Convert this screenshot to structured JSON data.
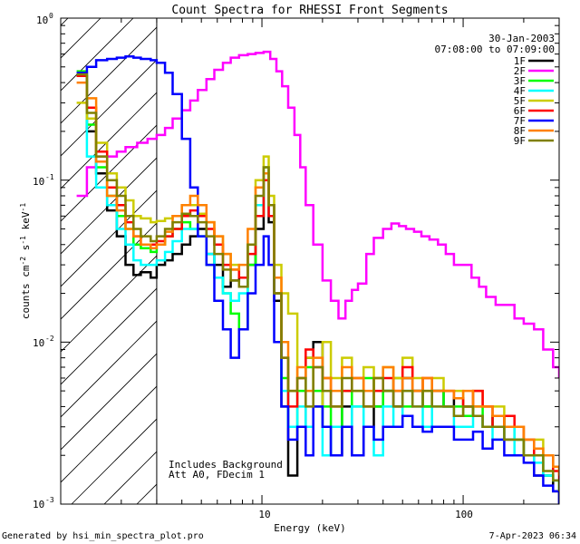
{
  "chart_data": {
    "type": "line",
    "title": "Count Spectra for RHESSI Front Segments",
    "date": "30-Jan-2003",
    "time_range": "07:08:00 to 07:09:00",
    "xlabel": "Energy (keV)",
    "ylabel": "counts cm",
    "ylabel_exp1": "-2",
    "ylabel_mid": " s",
    "ylabel_exp2": "-1",
    "ylabel_tail": " keV",
    "ylabel_exp3": "-1",
    "xscale": "log",
    "yscale": "log",
    "xlim": [
      1,
      300
    ],
    "ylim": [
      0.001,
      1
    ],
    "x_ticks": [
      {
        "value": 10,
        "label": "10"
      },
      {
        "value": 100,
        "label": "100"
      }
    ],
    "y_ticks": [
      {
        "value": 1,
        "base": "10",
        "exp": "0"
      },
      {
        "value": 0.1,
        "base": "10",
        "exp": "-1"
      },
      {
        "value": 0.01,
        "base": "10",
        "exp": "-2"
      },
      {
        "value": 0.001,
        "base": "10",
        "exp": "-3"
      }
    ],
    "hatched_region_xmax": 3,
    "annotations": [
      "Includes Background",
      "Att A0, FDecim 1"
    ],
    "legend_position": "top-right",
    "series": [
      {
        "name": "1F",
        "color": "#000000",
        "x": [
          1.2,
          1.35,
          1.5,
          1.7,
          1.9,
          2.1,
          2.3,
          2.5,
          2.8,
          3.0,
          3.3,
          3.6,
          4.0,
          4.4,
          4.8,
          5.3,
          5.8,
          6.4,
          7.0,
          7.7,
          8.5,
          9.3,
          10.2,
          10.8,
          11.5,
          12.5,
          13.5,
          15,
          16.5,
          18,
          20,
          22,
          25,
          28,
          32,
          36,
          40,
          45,
          50,
          56,
          63,
          70,
          80,
          90,
          100,
          112,
          125,
          140,
          160,
          180,
          200,
          225,
          250,
          280,
          300
        ],
        "y": [
          0.44,
          0.2,
          0.11,
          0.065,
          0.045,
          0.03,
          0.026,
          0.027,
          0.025,
          0.03,
          0.032,
          0.035,
          0.04,
          0.045,
          0.05,
          0.035,
          0.03,
          0.022,
          0.024,
          0.025,
          0.03,
          0.05,
          0.1,
          0.055,
          0.018,
          0.004,
          0.0015,
          0.003,
          0.008,
          0.01,
          0.003,
          0.002,
          0.004,
          0.002,
          0.003,
          0.004,
          0.005,
          0.004,
          0.006,
          0.005,
          0.004,
          0.005,
          0.004,
          0.0045,
          0.004,
          0.0035,
          0.003,
          0.0035,
          0.0025,
          0.0025,
          0.002,
          0.0015,
          0.0015,
          0.0012,
          0.001
        ]
      },
      {
        "name": "2F",
        "color": "#ff00ff",
        "x": [
          1.2,
          1.35,
          1.5,
          1.7,
          1.9,
          2.1,
          2.4,
          2.7,
          3.0,
          3.3,
          3.6,
          4.0,
          4.4,
          4.8,
          5.3,
          5.8,
          6.4,
          7.0,
          7.7,
          8.5,
          9.3,
          10.2,
          11.0,
          11.8,
          12.6,
          13.5,
          14.5,
          15.5,
          16.5,
          18,
          20,
          22,
          24,
          26,
          28,
          30,
          33,
          36,
          40,
          44,
          48,
          52,
          57,
          62,
          68,
          75,
          82,
          90,
          100,
          110,
          120,
          130,
          145,
          160,
          180,
          200,
          225,
          250,
          280,
          300
        ],
        "y": [
          0.08,
          0.12,
          0.14,
          0.14,
          0.15,
          0.16,
          0.17,
          0.18,
          0.19,
          0.21,
          0.24,
          0.27,
          0.31,
          0.36,
          0.42,
          0.48,
          0.53,
          0.57,
          0.59,
          0.6,
          0.61,
          0.62,
          0.56,
          0.47,
          0.38,
          0.28,
          0.19,
          0.12,
          0.07,
          0.04,
          0.024,
          0.018,
          0.014,
          0.018,
          0.021,
          0.023,
          0.035,
          0.044,
          0.05,
          0.054,
          0.052,
          0.05,
          0.048,
          0.045,
          0.043,
          0.04,
          0.035,
          0.03,
          0.03,
          0.025,
          0.022,
          0.019,
          0.017,
          0.017,
          0.014,
          0.013,
          0.012,
          0.009,
          0.007,
          0.006
        ]
      },
      {
        "name": "3F",
        "color": "#00ff00",
        "x": [
          1.2,
          1.35,
          1.5,
          1.7,
          1.9,
          2.1,
          2.3,
          2.5,
          2.8,
          3.0,
          3.3,
          3.6,
          4.0,
          4.4,
          4.8,
          5.3,
          5.8,
          6.4,
          7.0,
          7.7,
          8.5,
          9.3,
          10.2,
          10.8,
          11.5,
          12.5,
          13.5,
          15,
          16.5,
          18,
          20,
          22,
          25,
          28,
          32,
          36,
          40,
          45,
          50,
          56,
          63,
          70,
          80,
          90,
          100,
          112,
          125,
          140,
          160,
          180,
          200,
          225,
          250,
          280,
          300
        ],
        "y": [
          0.47,
          0.22,
          0.12,
          0.08,
          0.06,
          0.05,
          0.04,
          0.038,
          0.036,
          0.04,
          0.045,
          0.05,
          0.055,
          0.05,
          0.045,
          0.03,
          0.025,
          0.02,
          0.015,
          0.012,
          0.03,
          0.06,
          0.12,
          0.07,
          0.02,
          0.006,
          0.003,
          0.005,
          0.007,
          0.005,
          0.004,
          0.003,
          0.005,
          0.004,
          0.006,
          0.004,
          0.005,
          0.006,
          0.004,
          0.005,
          0.004,
          0.005,
          0.004,
          0.004,
          0.0035,
          0.004,
          0.003,
          0.0035,
          0.003,
          0.0025,
          0.002,
          0.002,
          0.0015,
          0.0014,
          0.0012
        ]
      },
      {
        "name": "4F",
        "color": "#00ffff",
        "x": [
          1.2,
          1.35,
          1.5,
          1.7,
          1.9,
          2.1,
          2.3,
          2.5,
          2.8,
          3.0,
          3.3,
          3.6,
          4.0,
          4.4,
          4.8,
          5.3,
          5.8,
          6.4,
          7.0,
          7.7,
          8.5,
          9.3,
          10.2,
          10.8,
          11.5,
          12.5,
          13.5,
          15,
          16.5,
          18,
          20,
          22,
          25,
          28,
          32,
          36,
          40,
          45,
          50,
          56,
          63,
          70,
          80,
          90,
          100,
          112,
          125,
          140,
          160,
          180,
          200,
          225,
          250,
          280,
          300
        ],
        "y": [
          0.46,
          0.14,
          0.09,
          0.07,
          0.05,
          0.04,
          0.032,
          0.03,
          0.03,
          0.032,
          0.036,
          0.042,
          0.05,
          0.05,
          0.045,
          0.035,
          0.025,
          0.02,
          0.018,
          0.02,
          0.04,
          0.07,
          0.11,
          0.06,
          0.02,
          0.005,
          0.003,
          0.004,
          0.003,
          0.004,
          0.002,
          0.003,
          0.003,
          0.004,
          0.003,
          0.002,
          0.004,
          0.003,
          0.005,
          0.004,
          0.003,
          0.004,
          0.004,
          0.003,
          0.003,
          0.0035,
          0.003,
          0.0025,
          0.003,
          0.002,
          0.002,
          0.0018,
          0.0015,
          0.0014,
          0.0012
        ]
      },
      {
        "name": "5F",
        "color": "#cccc00",
        "x": [
          1.2,
          1.35,
          1.5,
          1.7,
          1.9,
          2.1,
          2.3,
          2.5,
          2.8,
          3.0,
          3.3,
          3.6,
          4.0,
          4.4,
          4.8,
          5.3,
          5.8,
          6.4,
          7.0,
          7.7,
          8.5,
          9.3,
          10.2,
          10.8,
          11.5,
          12.5,
          13.5,
          15,
          16.5,
          18,
          20,
          22,
          25,
          28,
          32,
          36,
          40,
          45,
          50,
          56,
          63,
          70,
          80,
          90,
          100,
          112,
          125,
          140,
          160,
          180,
          200,
          225,
          250,
          280,
          300
        ],
        "y": [
          0.3,
          0.24,
          0.17,
          0.11,
          0.09,
          0.075,
          0.06,
          0.058,
          0.055,
          0.056,
          0.058,
          0.06,
          0.07,
          0.07,
          0.062,
          0.055,
          0.045,
          0.035,
          0.03,
          0.025,
          0.04,
          0.1,
          0.14,
          0.08,
          0.03,
          0.02,
          0.015,
          0.006,
          0.008,
          0.004,
          0.01,
          0.006,
          0.008,
          0.005,
          0.007,
          0.006,
          0.007,
          0.006,
          0.008,
          0.006,
          0.005,
          0.006,
          0.005,
          0.005,
          0.004,
          0.005,
          0.004,
          0.004,
          0.003,
          0.003,
          0.0025,
          0.0025,
          0.002,
          0.0017,
          0.0015
        ]
      },
      {
        "name": "6F",
        "color": "#ff0000",
        "x": [
          1.2,
          1.35,
          1.5,
          1.7,
          1.9,
          2.1,
          2.3,
          2.5,
          2.8,
          3.0,
          3.3,
          3.6,
          4.0,
          4.4,
          4.8,
          5.3,
          5.8,
          6.4,
          7.0,
          7.7,
          8.5,
          9.3,
          10.2,
          10.8,
          11.5,
          12.5,
          13.5,
          15,
          16.5,
          18,
          20,
          22,
          25,
          28,
          32,
          36,
          40,
          45,
          50,
          56,
          63,
          70,
          80,
          90,
          100,
          112,
          125,
          140,
          160,
          180,
          200,
          225,
          250,
          280,
          300
        ],
        "y": [
          0.44,
          0.28,
          0.15,
          0.09,
          0.07,
          0.055,
          0.045,
          0.04,
          0.04,
          0.042,
          0.045,
          0.05,
          0.06,
          0.065,
          0.06,
          0.05,
          0.04,
          0.03,
          0.028,
          0.025,
          0.035,
          0.06,
          0.1,
          0.06,
          0.02,
          0.008,
          0.004,
          0.006,
          0.009,
          0.007,
          0.006,
          0.004,
          0.005,
          0.006,
          0.004,
          0.005,
          0.006,
          0.005,
          0.007,
          0.005,
          0.006,
          0.005,
          0.005,
          0.0045,
          0.004,
          0.005,
          0.004,
          0.003,
          0.0035,
          0.003,
          0.0025,
          0.002,
          0.002,
          0.0016,
          0.0014
        ]
      },
      {
        "name": "7F",
        "color": "#0000ff",
        "x": [
          1.2,
          1.35,
          1.5,
          1.7,
          1.9,
          2.1,
          2.3,
          2.5,
          2.8,
          3.0,
          3.3,
          3.6,
          4.0,
          4.4,
          4.8,
          5.3,
          5.8,
          6.4,
          7.0,
          7.7,
          8.5,
          9.3,
          10.2,
          10.8,
          11.5,
          12.5,
          13.5,
          15,
          16.5,
          18,
          20,
          22,
          25,
          28,
          32,
          36,
          40,
          45,
          50,
          56,
          63,
          70,
          80,
          90,
          100,
          112,
          125,
          140,
          160,
          180,
          200,
          225,
          250,
          280,
          300
        ],
        "y": [
          0.46,
          0.5,
          0.55,
          0.56,
          0.57,
          0.58,
          0.57,
          0.56,
          0.55,
          0.53,
          0.46,
          0.34,
          0.18,
          0.09,
          0.045,
          0.03,
          0.018,
          0.012,
          0.008,
          0.012,
          0.02,
          0.03,
          0.045,
          0.03,
          0.01,
          0.004,
          0.0025,
          0.003,
          0.002,
          0.004,
          0.003,
          0.002,
          0.003,
          0.002,
          0.003,
          0.0025,
          0.003,
          0.003,
          0.0035,
          0.003,
          0.0028,
          0.003,
          0.003,
          0.0025,
          0.0025,
          0.0028,
          0.0022,
          0.0025,
          0.002,
          0.002,
          0.0018,
          0.0015,
          0.0013,
          0.0012,
          0.001
        ]
      },
      {
        "name": "8F",
        "color": "#ff8000",
        "x": [
          1.2,
          1.35,
          1.5,
          1.7,
          1.9,
          2.1,
          2.3,
          2.5,
          2.8,
          3.0,
          3.3,
          3.6,
          4.0,
          4.4,
          4.8,
          5.3,
          5.8,
          6.4,
          7.0,
          7.7,
          8.5,
          9.3,
          10.2,
          10.8,
          11.5,
          12.5,
          13.5,
          15,
          16.5,
          18,
          20,
          22,
          25,
          28,
          32,
          36,
          40,
          45,
          50,
          56,
          63,
          70,
          80,
          90,
          100,
          112,
          125,
          140,
          160,
          180,
          200,
          225,
          250,
          280,
          300
        ],
        "y": [
          0.4,
          0.32,
          0.13,
          0.08,
          0.065,
          0.05,
          0.045,
          0.04,
          0.038,
          0.04,
          0.048,
          0.06,
          0.07,
          0.08,
          0.07,
          0.055,
          0.045,
          0.035,
          0.028,
          0.03,
          0.05,
          0.09,
          0.11,
          0.07,
          0.025,
          0.01,
          0.005,
          0.007,
          0.005,
          0.008,
          0.006,
          0.005,
          0.007,
          0.006,
          0.005,
          0.006,
          0.007,
          0.005,
          0.006,
          0.005,
          0.006,
          0.005,
          0.005,
          0.0045,
          0.005,
          0.004,
          0.004,
          0.0035,
          0.003,
          0.003,
          0.0025,
          0.0022,
          0.002,
          0.0017,
          0.0015
        ]
      },
      {
        "name": "9F",
        "color": "#808000",
        "x": [
          1.2,
          1.35,
          1.5,
          1.7,
          1.9,
          2.1,
          2.3,
          2.5,
          2.8,
          3.0,
          3.3,
          3.6,
          4.0,
          4.4,
          4.8,
          5.3,
          5.8,
          6.4,
          7.0,
          7.7,
          8.5,
          9.3,
          10.2,
          10.8,
          11.5,
          12.5,
          13.5,
          15,
          16.5,
          18,
          20,
          22,
          25,
          28,
          32,
          36,
          40,
          45,
          50,
          56,
          63,
          70,
          80,
          90,
          100,
          112,
          125,
          140,
          160,
          180,
          200,
          225,
          250,
          280,
          300
        ],
        "y": [
          0.45,
          0.26,
          0.14,
          0.1,
          0.08,
          0.06,
          0.05,
          0.045,
          0.042,
          0.045,
          0.05,
          0.055,
          0.062,
          0.06,
          0.055,
          0.045,
          0.035,
          0.028,
          0.024,
          0.022,
          0.04,
          0.08,
          0.12,
          0.07,
          0.02,
          0.008,
          0.005,
          0.006,
          0.004,
          0.007,
          0.005,
          0.004,
          0.006,
          0.005,
          0.004,
          0.006,
          0.005,
          0.004,
          0.005,
          0.004,
          0.005,
          0.004,
          0.004,
          0.0035,
          0.004,
          0.0035,
          0.003,
          0.003,
          0.0025,
          0.0025,
          0.002,
          0.002,
          0.0016,
          0.0014,
          0.0012
        ]
      }
    ]
  },
  "footer": {
    "generated_by": "Generated by hsi_min_spectra_plot.pro",
    "timestamp": "7-Apr-2023 06:34"
  }
}
